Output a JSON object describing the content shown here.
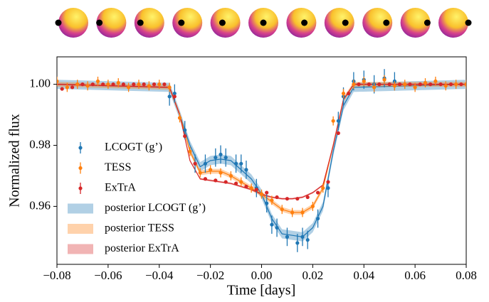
{
  "chart_data": {
    "type": "errorbar",
    "xlabel": "Time [days]",
    "ylabel": "Normalized flux",
    "xlim": [
      -0.08,
      0.08
    ],
    "ylim": [
      0.941,
      1.009
    ],
    "xticks": [
      {
        "value": -0.08,
        "label": "−0.08"
      },
      {
        "value": -0.06,
        "label": "−0.06"
      },
      {
        "value": -0.04,
        "label": "−0.04"
      },
      {
        "value": -0.02,
        "label": "−0.02"
      },
      {
        "value": 0,
        "label": "0.00"
      },
      {
        "value": 0.02,
        "label": "0.02"
      },
      {
        "value": 0.04,
        "label": "0.04"
      },
      {
        "value": 0.06,
        "label": "0.06"
      },
      {
        "value": 0.08,
        "label": "0.08"
      }
    ],
    "yticks": [
      0.96,
      0.98,
      {
        "value": 1,
        "label": "1.00"
      }
    ],
    "series": [
      {
        "name": "LCOGT (g’)",
        "color": "#1f77b4",
        "kind": "errorbar",
        "error": 0.003,
        "x": [
          -0.036,
          -0.034,
          -0.03,
          -0.026,
          -0.022,
          -0.018,
          -0.016,
          -0.014,
          -0.01,
          -0.008,
          -0.006,
          -0.002,
          0.002,
          0.004,
          0.006,
          0.01,
          0.014,
          0.016,
          0.018,
          0.022,
          0.026,
          0.03,
          0.032,
          0.036,
          0.04,
          0.044,
          0.048,
          0.052
        ],
        "values": [
          0.996,
          0.997,
          0.985,
          0.974,
          0.974,
          0.976,
          0.977,
          0.976,
          0.974,
          0.974,
          0.972,
          0.966,
          0.961,
          0.954,
          0.953,
          0.95,
          0.948,
          0.95,
          0.949,
          0.956,
          0.966,
          0.988,
          0.996,
          1.001,
          1.0015,
          1.0,
          1.002,
          1.001
        ]
      },
      {
        "name": "TESS",
        "color": "#ff7f0e",
        "kind": "errorbar",
        "error": 0.0015,
        "x": [
          -0.08,
          -0.076,
          -0.072,
          -0.068,
          -0.064,
          -0.06,
          -0.056,
          -0.052,
          -0.048,
          -0.044,
          -0.04,
          -0.036,
          -0.032,
          -0.028,
          -0.024,
          -0.02,
          -0.016,
          -0.012,
          -0.008,
          -0.004,
          0,
          0.004,
          0.008,
          0.012,
          0.016,
          0.02,
          0.024,
          0.028,
          0.032,
          0.036,
          0.04,
          0.044,
          0.048,
          0.052,
          0.056,
          0.06,
          0.064,
          0.068,
          0.072,
          0.076,
          0.08
        ],
        "values": [
          1.001,
          0.999,
          1.0,
          0.9995,
          1.001,
          1.0,
          1.0005,
          0.999,
          1.0,
          0.9995,
          1.0,
          0.999,
          0.989,
          0.978,
          0.971,
          0.972,
          0.971,
          0.97,
          0.968,
          0.966,
          0.964,
          0.962,
          0.959,
          0.958,
          0.958,
          0.96,
          0.966,
          0.988,
          0.997,
          1.0,
          1.001,
          0.999,
          1.0015,
          0.9995,
          1.0,
          0.999,
          1.0005,
          1.001,
          0.9995,
          1.0,
          1.0
        ]
      },
      {
        "name": "ExTrA",
        "color": "#d62728",
        "kind": "errorbar",
        "error": 0.0005,
        "x": [
          -0.078,
          -0.074,
          -0.07,
          -0.066,
          -0.062,
          -0.058,
          -0.054,
          -0.05,
          -0.046,
          -0.042,
          -0.038,
          -0.034,
          -0.03,
          -0.026,
          -0.022,
          -0.018,
          -0.014,
          -0.01,
          -0.006,
          -0.002,
          0.002,
          0.006,
          0.01,
          0.014,
          0.018,
          0.022,
          0.026,
          0.03,
          0.034,
          0.038,
          0.042,
          0.046,
          0.05,
          0.054,
          0.058,
          0.062,
          0.066,
          0.07,
          0.074,
          0.078
        ],
        "values": [
          0.9985,
          0.999,
          1.0,
          1.0,
          1.0,
          1.0,
          1.0,
          1.0,
          1.0,
          1.0,
          1.0,
          0.996,
          0.983,
          0.974,
          0.969,
          0.9685,
          0.968,
          0.9675,
          0.9665,
          0.9655,
          0.9645,
          0.963,
          0.9625,
          0.9625,
          0.963,
          0.9645,
          0.968,
          0.984,
          0.997,
          1.0,
          1.0,
          1.0,
          1.0,
          1.0,
          1.0,
          1.0,
          1.0,
          1.0,
          1.0,
          1.0
        ]
      },
      {
        "name": "posterior LCOGT (g’)",
        "color": "#1f77b4",
        "kind": "band",
        "band": 0.0015,
        "x": [
          -0.08,
          -0.036,
          -0.032,
          -0.028,
          -0.024,
          -0.02,
          -0.016,
          -0.012,
          -0.008,
          -0.004,
          0,
          0.004,
          0.008,
          0.012,
          0.016,
          0.02,
          0.024,
          0.028,
          0.032,
          0.036,
          0.08
        ],
        "values": [
          1.0,
          0.999,
          0.99,
          0.98,
          0.973,
          0.975,
          0.9755,
          0.975,
          0.972,
          0.969,
          0.964,
          0.956,
          0.951,
          0.9505,
          0.95,
          0.953,
          0.96,
          0.978,
          0.993,
          0.999,
          1.0
        ]
      },
      {
        "name": "posterior TESS",
        "color": "#ff7f0e",
        "kind": "band",
        "band": 0.0008,
        "x": [
          -0.08,
          -0.036,
          -0.032,
          -0.028,
          -0.024,
          -0.02,
          -0.016,
          -0.012,
          -0.008,
          -0.004,
          0,
          0.004,
          0.008,
          0.012,
          0.016,
          0.02,
          0.024,
          0.028,
          0.032,
          0.036,
          0.08
        ],
        "values": [
          1.0,
          0.999,
          0.99,
          0.978,
          0.971,
          0.9715,
          0.9715,
          0.97,
          0.968,
          0.966,
          0.964,
          0.9615,
          0.959,
          0.958,
          0.958,
          0.96,
          0.966,
          0.98,
          0.995,
          1.0,
          1.0
        ]
      },
      {
        "name": "posterior ExTrA",
        "color": "#d62728",
        "kind": "band",
        "band": 0.0003,
        "x": [
          -0.08,
          -0.036,
          -0.032,
          -0.028,
          -0.024,
          -0.02,
          -0.016,
          -0.012,
          -0.008,
          -0.004,
          0,
          0.004,
          0.008,
          0.012,
          0.016,
          0.02,
          0.024,
          0.028,
          0.032,
          0.036,
          0.08
        ],
        "values": [
          1.0,
          0.999,
          0.99,
          0.975,
          0.969,
          0.9685,
          0.968,
          0.9675,
          0.9665,
          0.9655,
          0.964,
          0.963,
          0.9625,
          0.9625,
          0.963,
          0.9645,
          0.967,
          0.98,
          0.995,
          1.0,
          1.0
        ]
      }
    ]
  }
}
